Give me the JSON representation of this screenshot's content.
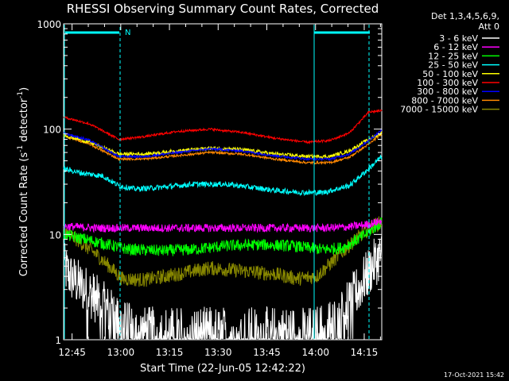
{
  "chart_data": {
    "type": "line",
    "title": "RHESSI Observing Summary Count Rates, Corrected",
    "xlabel": "Start Time (22-Jun-05 12:42:22)",
    "ylabel": "Corrected Count Rate (s-1 detector-1)",
    "ylabel_parts": [
      "Corrected Count Rate (s",
      "-1",
      " detector",
      "-1",
      ")"
    ],
    "yscale": "log",
    "ylim": [
      1,
      1000
    ],
    "xlim_minutes": [
      0,
      98
    ],
    "y_ticks": [
      {
        "value": 1,
        "label": "1"
      },
      {
        "value": 10,
        "label": "10"
      },
      {
        "value": 100,
        "label": "100"
      },
      {
        "value": 1000,
        "label": "1000"
      }
    ],
    "x_ticks": [
      {
        "minute": 2.6,
        "label": "12:45"
      },
      {
        "minute": 17.6,
        "label": "13:00"
      },
      {
        "minute": 32.6,
        "label": "13:15"
      },
      {
        "minute": 47.6,
        "label": "13:30"
      },
      {
        "minute": 62.6,
        "label": "13:45"
      },
      {
        "minute": 77.6,
        "label": "14:00"
      },
      {
        "minute": 92.6,
        "label": "14:15"
      }
    ],
    "legend_header": [
      "Det 1,3,4,5,6,9,",
      "Att 0"
    ],
    "night_marker": "N",
    "series": [
      {
        "name": "3 - 6 keV",
        "color": "#ffffff",
        "noise": 0.55,
        "x": [
          0,
          2,
          5,
          9,
          13,
          17,
          22,
          30,
          40,
          50,
          60,
          70,
          76,
          80,
          84,
          88,
          92,
          96,
          98
        ],
        "y": [
          5,
          4,
          3.3,
          2.6,
          2,
          1.5,
          1.2,
          1.2,
          1.2,
          1.2,
          1.2,
          1.2,
          1.2,
          1.3,
          1.5,
          2.2,
          3.5,
          5.5,
          6.5
        ]
      },
      {
        "name": "6 - 12 keV",
        "color": "#ff00ff",
        "noise": 0.09,
        "x": [
          0,
          10,
          20,
          30,
          40,
          50,
          60,
          70,
          80,
          88,
          94,
          98
        ],
        "y": [
          12,
          11.5,
          11.5,
          11.5,
          11.5,
          11.5,
          11.5,
          11.5,
          11.5,
          11.8,
          12.5,
          13.5
        ]
      },
      {
        "name": "12 - 25 keV",
        "color": "#00ff00",
        "noise": 0.13,
        "x": [
          0,
          10,
          20,
          30,
          40,
          50,
          60,
          70,
          80,
          86,
          92,
          98
        ],
        "y": [
          10,
          8.5,
          7.2,
          7,
          7.2,
          7.8,
          8,
          7.8,
          7.2,
          7.5,
          9.5,
          13
        ]
      },
      {
        "name": "25 - 50 keV",
        "color": "#00ffff",
        "noise": 0.06,
        "x": [
          0,
          6,
          12,
          17,
          22,
          30,
          40,
          50,
          58,
          66,
          74,
          80,
          88,
          94,
          98
        ],
        "y": [
          42,
          38,
          36,
          29,
          27,
          28,
          30,
          30,
          28,
          26,
          25,
          25,
          29,
          42,
          55
        ]
      },
      {
        "name": "50 - 100 keV",
        "color": "#ffff00",
        "noise": 0.04,
        "x": [
          0,
          8,
          17,
          25,
          35,
          45,
          55,
          65,
          75,
          82,
          88,
          94,
          98
        ],
        "y": [
          88,
          75,
          58,
          58,
          62,
          66,
          64,
          58,
          55,
          55,
          62,
          80,
          92
        ]
      },
      {
        "name": "100 - 300 keV",
        "color": "#ff0000",
        "noise": 0.025,
        "x": [
          0,
          8,
          17,
          25,
          35,
          45,
          55,
          65,
          75,
          82,
          88,
          94,
          98
        ],
        "y": [
          130,
          112,
          80,
          85,
          95,
          100,
          93,
          82,
          75,
          78,
          92,
          145,
          150
        ]
      },
      {
        "name": "300 - 800 keV",
        "color": "#0000ff",
        "noise": 0.025,
        "x": [
          0,
          8,
          17,
          25,
          35,
          45,
          55,
          65,
          75,
          82,
          88,
          94,
          98
        ],
        "y": [
          92,
          78,
          55,
          55,
          60,
          65,
          62,
          56,
          52,
          52,
          58,
          78,
          98
        ]
      },
      {
        "name": "800 - 7000 keV",
        "color": "#ff8800",
        "noise": 0.025,
        "x": [
          0,
          8,
          17,
          25,
          35,
          45,
          55,
          65,
          75,
          82,
          88,
          94,
          98
        ],
        "y": [
          86,
          72,
          52,
          52,
          56,
          60,
          58,
          52,
          48,
          48,
          54,
          72,
          90
        ]
      },
      {
        "name": "7000 - 15000 keV",
        "color": "#888800",
        "noise": 0.16,
        "x": [
          0,
          5,
          10,
          14,
          18,
          25,
          35,
          45,
          55,
          65,
          72,
          78,
          84,
          90,
          95,
          98
        ],
        "y": [
          11,
          8.5,
          6.5,
          5,
          3.8,
          3.7,
          4.2,
          4.8,
          4.5,
          4.2,
          3.8,
          4,
          6,
          9,
          12,
          13
        ]
      }
    ]
  },
  "timestamp": "17-Oct-2021 15:42"
}
